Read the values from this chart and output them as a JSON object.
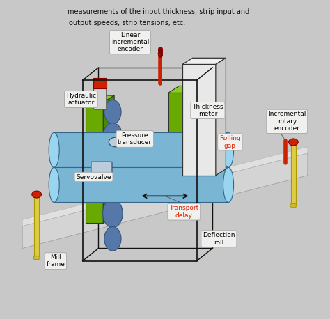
{
  "title_text": "",
  "background_color": "#ffffff",
  "fig_width": 4.74,
  "fig_height": 4.58,
  "dpi": 100,
  "labels": {
    "linear_encoder": "Linear\nincremental\nencoder",
    "hydraulic_actuator": "Hydraulic\nactuator",
    "pressure_transducer": "Pressure\ntransducer",
    "servovalve": "Servovalve",
    "thickness_meter": "Thickness\nmeter",
    "rolling_gap": "Rolling\ngap",
    "transport_delay": "Transport\ndelay",
    "deflection_roll": "Deflection\nroll",
    "mill_frame": "Mill\nframe",
    "incremental_rotary": "Incremental\nrotary\nencoder"
  },
  "colors": {
    "strip_gray": "#c8c8c8",
    "strip_shadow": "#a0a0a0",
    "roll_blue": "#7ab5d4",
    "roll_dark_blue": "#5a95b4",
    "roll_shadow": "#4a85a4",
    "frame_green": "#6aaa00",
    "frame_dark_green": "#4a8a00",
    "hydraulic_red": "#cc2200",
    "small_roll_dark": "#5577aa",
    "frame_box": "#222222",
    "yellow_coil": "#ddcc44",
    "annotation_box": "#f0f0ee",
    "annotation_border": "#aaaaaa",
    "red_text": "#dd2200",
    "text_black": "#111111"
  }
}
